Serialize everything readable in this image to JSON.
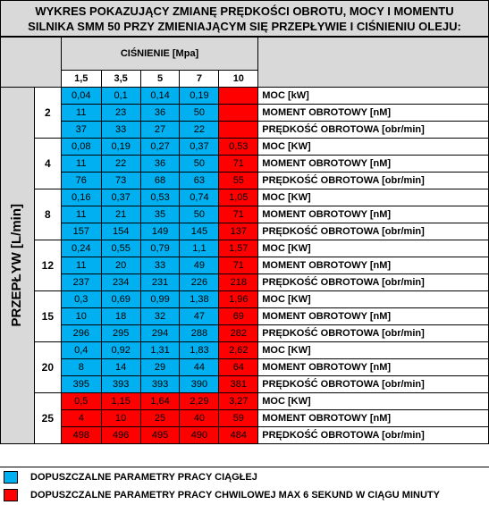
{
  "title": {
    "line1": "WYKRES POKAZUJĄCY ZMIANĘ PRĘDKOŚCI OBROTU, MOCY I MOMENTU",
    "line2": "SILNIKA SMM 50 PRZY ZMIENIAJĄCYM SIĘ PRZEPŁYWIE I CIŚNIENIU OLEJU:"
  },
  "pressure_header": "CIŚNIENIE  [Mpa]",
  "pressures": [
    "1,5",
    "3,5",
    "5",
    "7",
    "10"
  ],
  "flow_axis_label": "PRZEPŁYW [L/min]",
  "rows": [
    {
      "flow": "2",
      "moc": [
        "0,04",
        "0,1",
        "0,14",
        "0,19",
        ""
      ],
      "moment": [
        "11",
        "23",
        "36",
        "50",
        ""
      ],
      "predkosc": [
        "37",
        "33",
        "27",
        "22",
        ""
      ],
      "labels": [
        "MOC [kW]",
        "MOMENT OBROTOWY [nM]",
        "PRĘDKOŚĆ OBROTOWA [obr/min]"
      ]
    },
    {
      "flow": "4",
      "moc": [
        "0,08",
        "0,19",
        "0,27",
        "0,37",
        "0,53"
      ],
      "moment": [
        "11",
        "22",
        "36",
        "50",
        "71"
      ],
      "predkosc": [
        "76",
        "73",
        "68",
        "63",
        "55"
      ],
      "labels": [
        "MOC [KW]",
        "MOMENT OBROTOWY [nM]",
        "PRĘDKOŚĆ OBROTOWA [obr/min]"
      ]
    },
    {
      "flow": "8",
      "moc": [
        "0,16",
        "0,37",
        "0,53",
        "0,74",
        "1,05"
      ],
      "moment": [
        "11",
        "21",
        "35",
        "50",
        "71"
      ],
      "predkosc": [
        "157",
        "154",
        "149",
        "145",
        "137"
      ],
      "labels": [
        "MOC [KW]",
        "MOMENT OBROTOWY [nM]",
        "PRĘDKOŚĆ OBROTOWA [obr/min]"
      ]
    },
    {
      "flow": "12",
      "moc": [
        "0,24",
        "0,55",
        "0,79",
        "1,1",
        "1,57"
      ],
      "moment": [
        "11",
        "20",
        "33",
        "49",
        "71"
      ],
      "predkosc": [
        "237",
        "234",
        "231",
        "226",
        "218"
      ],
      "labels": [
        "MOC [KW]",
        "MOMENT OBROTOWY [nM]",
        "PRĘDKOŚĆ OBROTOWA [obr/min]"
      ]
    },
    {
      "flow": "15",
      "moc": [
        "0,3",
        "0,69",
        "0,99",
        "1,38",
        "1,96"
      ],
      "moment": [
        "10",
        "18",
        "32",
        "47",
        "69"
      ],
      "predkosc": [
        "296",
        "295",
        "294",
        "288",
        "282"
      ],
      "labels": [
        "MOC [KW]",
        "MOMENT OBROTOWY [nM]",
        "PRĘDKOŚĆ OBROTOWA [obr/min]"
      ]
    },
    {
      "flow": "20",
      "moc": [
        "0,4",
        "0,92",
        "1,31",
        "1,83",
        "2,62"
      ],
      "moment": [
        "8",
        "14",
        "29",
        "44",
        "64"
      ],
      "predkosc": [
        "395",
        "393",
        "393",
        "390",
        "381"
      ],
      "labels": [
        "MOC [KW]",
        "MOMENT OBROTOWY [nM]",
        "PRĘDKOŚĆ OBROTOWA [obr/min]"
      ]
    },
    {
      "flow": "25",
      "moc": [
        "0,5",
        "1,15",
        "1,64",
        "2,29",
        "3,27"
      ],
      "moment": [
        "4",
        "10",
        "25",
        "40",
        "59"
      ],
      "predkosc": [
        "498",
        "496",
        "495",
        "490",
        "484"
      ],
      "labels": [
        "MOC [KW]",
        "MOMENT OBROTOWY [nM]",
        "PRĘDKOŚĆ OBROTOWA [obr/min]"
      ]
    }
  ],
  "legend": {
    "blue_text": "DOPUSZCZALNE PARAMETRY PRACY CIĄGŁEJ",
    "red_text": "DOPUSZCZALNE PARAMETRY PRACY CHWILOWEJ MAX 6 SEKUND W CIĄGU MINUTY"
  },
  "colors": {
    "continuous": "#00b0f0",
    "momentary": "#ff0000",
    "header": "#d9d9d9"
  }
}
